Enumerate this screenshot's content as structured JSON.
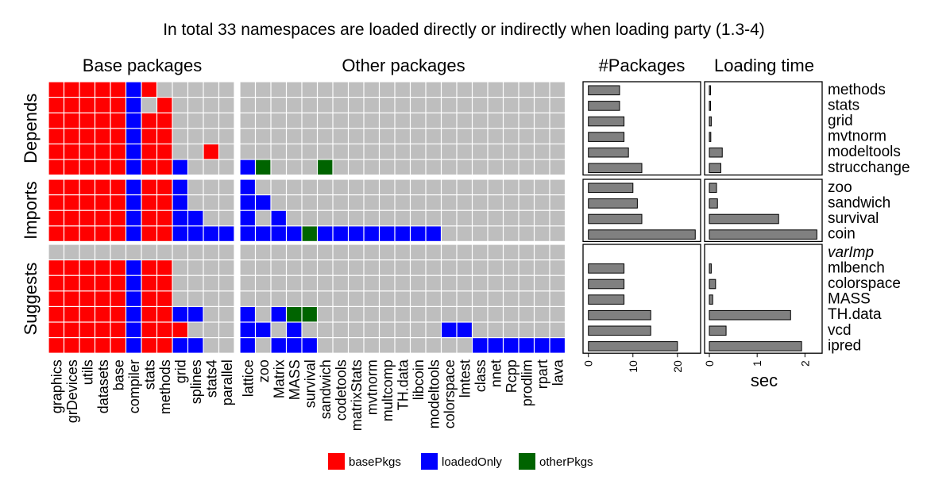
{
  "title": "In total 33 namespaces are loaded directly or indirectly when loading party (1.3-4)",
  "colors": {
    "basePkgs": "#FF0000",
    "loadedOnly": "#0000FF",
    "otherPkgs": "#006400",
    "empty": "#BEBEBE",
    "bar": "#808080"
  },
  "chart_data": {
    "type": "heatmap",
    "panel_titles": {
      "base": "Base packages",
      "other": "Other packages",
      "packages": "#Packages",
      "loading": "Loading time"
    },
    "base_columns": [
      "graphics",
      "grDevices",
      "utils",
      "datasets",
      "base",
      "compiler",
      "stats",
      "methods",
      "grid",
      "splines",
      "stats4",
      "parallel"
    ],
    "other_columns": [
      "lattice",
      "zoo",
      "Matrix",
      "MASS",
      "survival",
      "sandwich",
      "codetools",
      "matrixStats",
      "mvtnorm",
      "multcomp",
      "TH.data",
      "libcoin",
      "modeltools",
      "colorspace",
      "lmtest",
      "class",
      "nnet",
      "Rcpp",
      "prodlim",
      "rpart",
      "lava"
    ],
    "groups": [
      {
        "name": "Depends",
        "rows": [
          {
            "package": "methods",
            "base": "RRRRRBR.....",
            "other": ".....................",
            "n_packages": 7,
            "load_time": 0
          },
          {
            "package": "stats",
            "base": "RRRRRB.R....",
            "other": ".....................",
            "n_packages": 7,
            "load_time": 0
          },
          {
            "package": "grid",
            "base": "RRRRRBRR....",
            "other": ".....................",
            "n_packages": 8,
            "load_time": 0.04
          },
          {
            "package": "mvtnorm",
            "base": "RRRRRBRR....",
            "other": ".....................",
            "n_packages": 8,
            "load_time": 0.03
          },
          {
            "package": "modeltools",
            "base": "RRRRRBRR..R.",
            "other": ".....................",
            "n_packages": 9,
            "load_time": 0.27
          },
          {
            "package": "strucchange",
            "base": "RRRRRBRRB...",
            "other": "BG...G...............",
            "n_packages": 12,
            "load_time": 0.24
          }
        ]
      },
      {
        "name": "Imports",
        "rows": [
          {
            "package": "zoo",
            "base": "RRRRRBRRB...",
            "other": "B....................",
            "n_packages": 10,
            "load_time": 0.15
          },
          {
            "package": "sandwich",
            "base": "RRRRRBRRB...",
            "other": "BB...................",
            "n_packages": 11,
            "load_time": 0.17
          },
          {
            "package": "survival",
            "base": "RRRRRBRRBB..",
            "other": "B.B..................",
            "n_packages": 12,
            "load_time": 1.45
          },
          {
            "package": "coin",
            "base": "RRRRRBRRBBBB",
            "other": "BBBBGBBBBBBBB........",
            "n_packages": 24,
            "load_time": 2.25
          }
        ]
      },
      {
        "name": "Suggests",
        "rows": [
          {
            "package": "varImp",
            "base": "............",
            "other": ".....................",
            "n_packages": null,
            "load_time": null,
            "muted": true
          },
          {
            "package": "mlbench",
            "base": "RRRRRBRR....",
            "other": ".....................",
            "n_packages": 8,
            "load_time": 0.04
          },
          {
            "package": "colorspace",
            "base": "RRRRRBRR....",
            "other": ".....................",
            "n_packages": 8,
            "load_time": 0.13
          },
          {
            "package": "MASS",
            "base": "RRRRRBRR....",
            "other": ".....................",
            "n_packages": 8,
            "load_time": 0.07
          },
          {
            "package": "TH.data",
            "base": "RRRRRBRRBB..",
            "other": "B.BGG................",
            "n_packages": 14,
            "load_time": 1.7
          },
          {
            "package": "vcd",
            "base": "RRRRRBRRR...",
            "other": "BB.B.........BB......",
            "n_packages": 14,
            "load_time": 0.35
          },
          {
            "package": "ipred",
            "base": "RRRRRBRRBB..",
            "other": "B.BBB..........BBBBBB",
            "n_packages": 20,
            "load_time": 1.93
          }
        ]
      }
    ],
    "packages_axis": {
      "ticks": [
        0,
        10,
        20
      ],
      "xlim": [
        -1.2,
        25.2
      ]
    },
    "loading_axis": {
      "ticks": [
        0,
        1,
        2
      ],
      "xlim": [
        -0.1,
        2.36
      ],
      "xlabel": "sec"
    },
    "legend": [
      {
        "key": "basePkgs",
        "label": "basePkgs"
      },
      {
        "key": "loadedOnly",
        "label": "loadedOnly"
      },
      {
        "key": "otherPkgs",
        "label": "otherPkgs"
      }
    ]
  }
}
